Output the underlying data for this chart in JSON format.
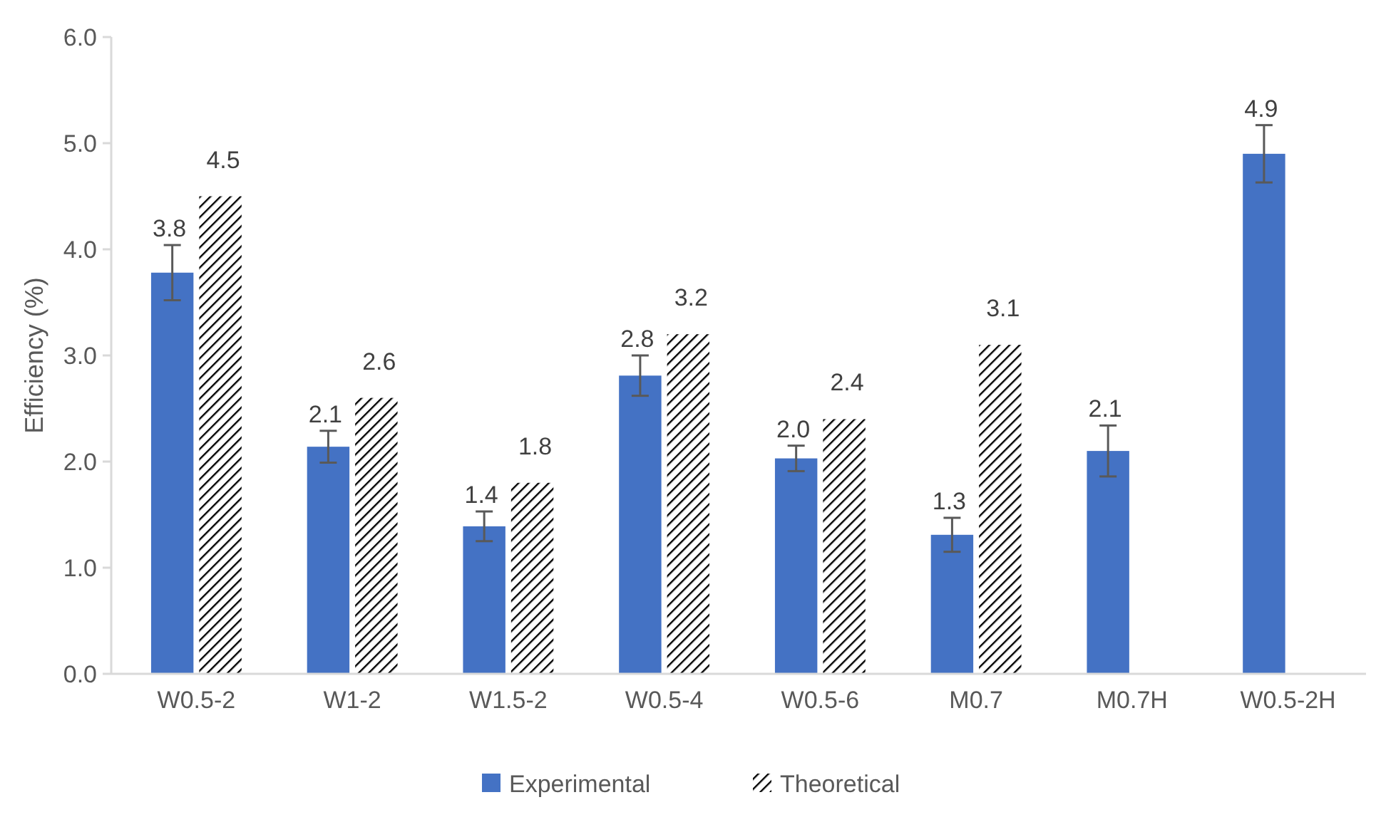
{
  "chart_data": {
    "type": "bar",
    "ylabel": "Efficiency (%)",
    "categories": [
      "W0.5-2",
      "W1-2",
      "W1.5-2",
      "W0.5-4",
      "W0.5-6",
      "M0.7",
      "M0.7H",
      "W0.5-2H"
    ],
    "series": [
      {
        "name": "Experimental",
        "color": "#4472c4",
        "values": [
          3.78,
          2.14,
          1.39,
          2.81,
          2.03,
          1.31,
          2.1,
          4.9
        ],
        "errors": [
          0.26,
          0.15,
          0.14,
          0.19,
          0.12,
          0.16,
          0.24,
          0.27
        ],
        "value_labels": [
          "3.8",
          "2.1",
          "1.4",
          "2.8",
          "2.0",
          "1.3",
          "2.1",
          "4.9"
        ]
      },
      {
        "name": "Theoretical",
        "color": "#000000",
        "values": [
          4.5,
          2.6,
          1.8,
          3.2,
          2.4,
          3.1,
          null,
          null
        ],
        "value_labels": [
          "4.5",
          "2.6",
          "1.8",
          "3.2",
          "2.4",
          "3.1",
          null,
          null
        ]
      }
    ],
    "ylim": [
      0,
      6
    ],
    "yticks": [
      {
        "value": 0,
        "label": "0.0"
      },
      {
        "value": 1,
        "label": "1.0"
      },
      {
        "value": 2,
        "label": "2.0"
      },
      {
        "value": 3,
        "label": "3.0"
      },
      {
        "value": 4,
        "label": "4.0"
      },
      {
        "value": 5,
        "label": "5.0"
      },
      {
        "value": 6,
        "label": "6.0"
      }
    ],
    "grid": false,
    "legend": "bottom"
  }
}
